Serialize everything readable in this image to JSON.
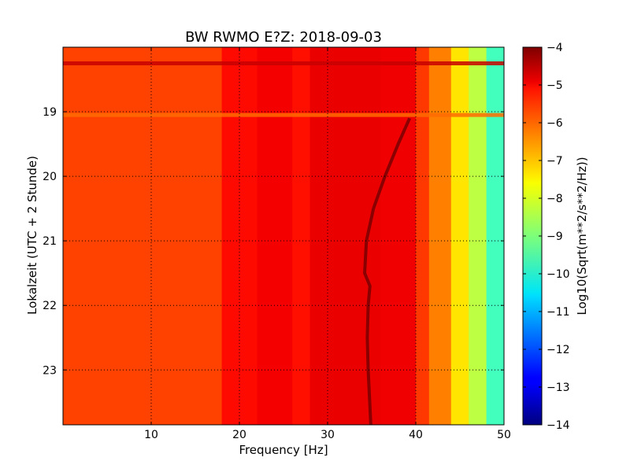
{
  "chart_data": {
    "type": "heatmap",
    "title": "BW RWMO E?Z: 2018-09-03",
    "xlabel": "Frequency [Hz]",
    "ylabel": "Lokalzeit (UTC + 2 Stunde)",
    "colorbar_label": "Log10(Sqrt(m**2/s**2/Hz))",
    "xlim": [
      0,
      50
    ],
    "ylim_hours": [
      18.0,
      23.85
    ],
    "y_inverted": true,
    "x_ticks": [
      10,
      20,
      30,
      40,
      50
    ],
    "y_ticks": [
      19,
      20,
      21,
      22,
      23
    ],
    "color_range": [
      -14,
      -4
    ],
    "color_ticks": [
      -4,
      -5,
      -6,
      -7,
      -8,
      -9,
      -10,
      -11,
      -12,
      -13,
      -14
    ],
    "colormap": "jet",
    "grid": true,
    "spectral_bands": [
      {
        "f_from": 0,
        "f_to": 18,
        "level": -5.9
      },
      {
        "f_from": 18,
        "f_to": 22,
        "level": -5.35
      },
      {
        "f_from": 22,
        "f_to": 26,
        "level": -5.15
      },
      {
        "f_from": 26,
        "f_to": 28,
        "level": -5.4
      },
      {
        "f_from": 28,
        "f_to": 36,
        "level": -5.05
      },
      {
        "f_from": 36,
        "f_to": 40,
        "level": -5.1
      },
      {
        "f_from": 40,
        "f_to": 41.5,
        "level": -5.8
      },
      {
        "f_from": 41.5,
        "f_to": 44,
        "level": -6.5
      },
      {
        "f_from": 44,
        "f_to": 46,
        "level": -7.5
      },
      {
        "f_from": 46,
        "f_to": 48,
        "level": -8.4
      },
      {
        "f_from": 48,
        "f_to": 50,
        "level": -9.6
      }
    ],
    "events": [
      {
        "time": 18.25,
        "f_from": 0,
        "f_to": 50,
        "level": -4.7
      },
      {
        "time": 19.05,
        "f_from": 0,
        "f_to": 50,
        "level": -6.3
      }
    ],
    "drifting_line": {
      "level": -4.1,
      "points": [
        {
          "time": 19.1,
          "f": 39.3
        },
        {
          "time": 19.5,
          "f": 38.0
        },
        {
          "time": 20.0,
          "f": 36.5
        },
        {
          "time": 20.5,
          "f": 35.2
        },
        {
          "time": 21.0,
          "f": 34.4
        },
        {
          "time": 21.5,
          "f": 34.2
        },
        {
          "time": 21.7,
          "f": 34.8
        },
        {
          "time": 22.0,
          "f": 34.6
        },
        {
          "time": 22.5,
          "f": 34.5
        },
        {
          "time": 23.0,
          "f": 34.6
        },
        {
          "time": 23.85,
          "f": 34.9
        }
      ]
    }
  }
}
